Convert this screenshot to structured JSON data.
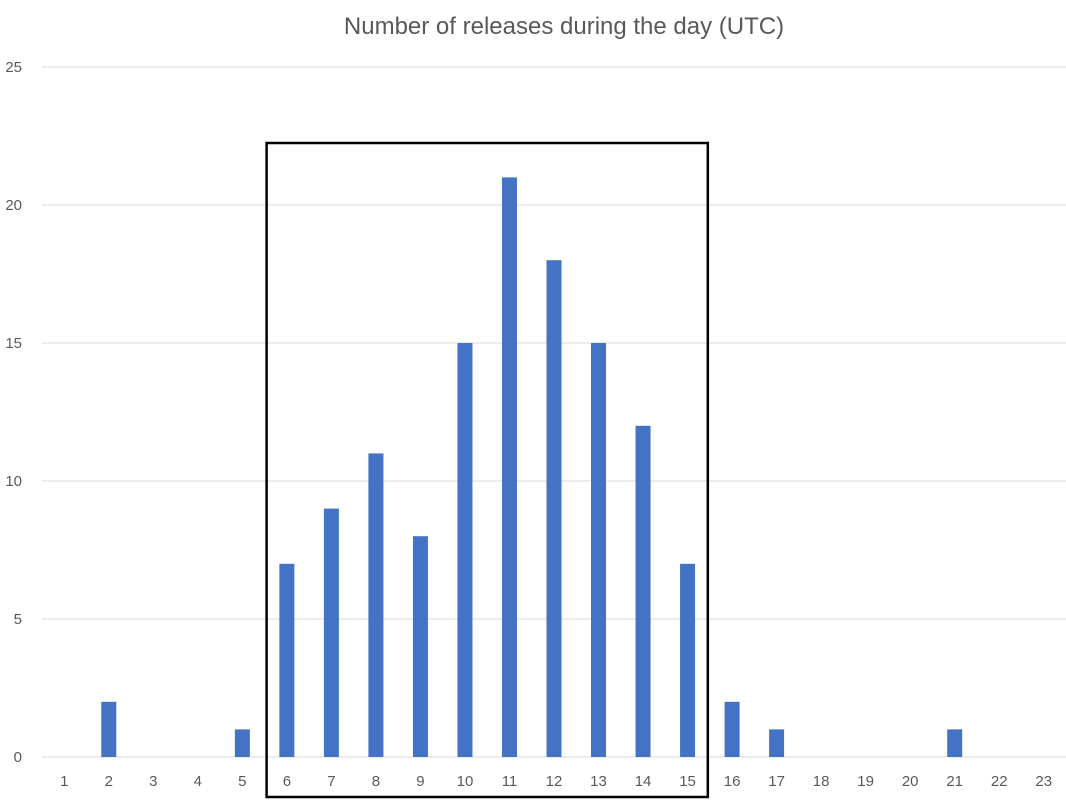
{
  "chart_data": {
    "type": "bar",
    "title": "Number of releases during the day (UTC)",
    "xlabel": "",
    "ylabel": "",
    "categories": [
      "1",
      "2",
      "3",
      "4",
      "5",
      "6",
      "7",
      "8",
      "9",
      "10",
      "11",
      "12",
      "13",
      "14",
      "15",
      "16",
      "17",
      "18",
      "19",
      "20",
      "21",
      "22",
      "23"
    ],
    "values": [
      0,
      2,
      0,
      0,
      1,
      7,
      9,
      11,
      8,
      15,
      21,
      18,
      15,
      12,
      7,
      2,
      1,
      0,
      0,
      0,
      1,
      0,
      0
    ],
    "ylim": [
      0,
      25
    ],
    "yticks": [
      "0",
      "5",
      "10",
      "15",
      "20",
      "25"
    ],
    "grid": true,
    "legend": "none",
    "bar_color": "#4472c4",
    "highlight_range": [
      "6",
      "15"
    ]
  }
}
